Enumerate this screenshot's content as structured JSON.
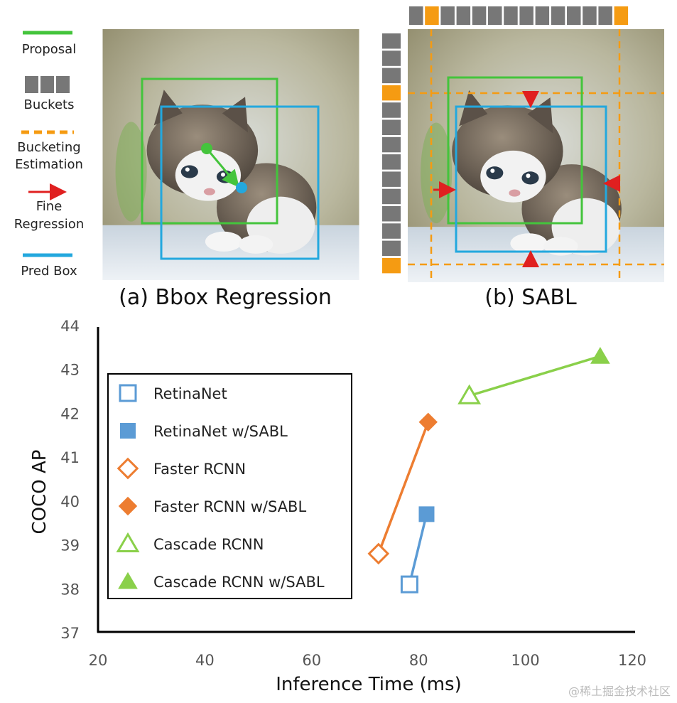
{
  "figure": {
    "panel_a_caption": "(a) Bbox Regression",
    "panel_b_caption": "(b) SABL",
    "legend": {
      "proposal": "Proposal",
      "buckets": "Buckets",
      "bucketing_line1": "Bucketing",
      "bucketing_line2": "Estimation",
      "fine_line1": "Fine",
      "fine_line2": "Regression",
      "pred_box": "Pred Box"
    },
    "watermark": "@稀土掘金技术社区"
  },
  "colors": {
    "proposal": "#44c43c",
    "pred_box": "#23a8de",
    "bucket_gray": "#777777",
    "bucket_orange": "#f59b12",
    "fine_arrow": "#e02020",
    "retinanet": "#5b9bd5",
    "faster": "#ed7d31",
    "cascade": "#8ad04a"
  },
  "chart_data": {
    "type": "scatter",
    "xlabel": "Inference Time (ms)",
    "ylabel": "COCO AP",
    "xlim": [
      20,
      120
    ],
    "ylim": [
      37,
      44
    ],
    "xticks": [
      "20",
      "40",
      "60",
      "80",
      "100",
      "120"
    ],
    "yticks": [
      "37",
      "38",
      "39",
      "40",
      "41",
      "42",
      "43",
      "44"
    ],
    "legend_position": "top-left",
    "grid": false,
    "series": [
      {
        "name": "RetinaNet",
        "marker": "square",
        "filled": false,
        "color": "#5b9bd5",
        "x": [
          78.3
        ],
        "y": [
          38.1
        ]
      },
      {
        "name": "RetinaNet w/SABL",
        "marker": "square",
        "filled": true,
        "color": "#5b9bd5",
        "x": [
          81.5
        ],
        "y": [
          39.7
        ]
      },
      {
        "name": "Faster RCNN",
        "marker": "diamond",
        "filled": false,
        "color": "#ed7d31",
        "x": [
          72.5
        ],
        "y": [
          38.8
        ]
      },
      {
        "name": "Faster RCNN w/SABL",
        "marker": "diamond",
        "filled": true,
        "color": "#ed7d31",
        "x": [
          81.8
        ],
        "y": [
          41.8
        ]
      },
      {
        "name": "Cascade RCNN",
        "marker": "triangle",
        "filled": false,
        "color": "#8ad04a",
        "x": [
          89.5
        ],
        "y": [
          42.4
        ]
      },
      {
        "name": "Cascade RCNN w/SABL",
        "marker": "triangle",
        "filled": true,
        "color": "#8ad04a",
        "x": [
          114
        ],
        "y": [
          43.3
        ]
      }
    ],
    "connections": [
      {
        "from": 0,
        "to": 1,
        "color": "#5b9bd5"
      },
      {
        "from": 2,
        "to": 3,
        "color": "#ed7d31"
      },
      {
        "from": 4,
        "to": 5,
        "color": "#8ad04a"
      }
    ]
  }
}
